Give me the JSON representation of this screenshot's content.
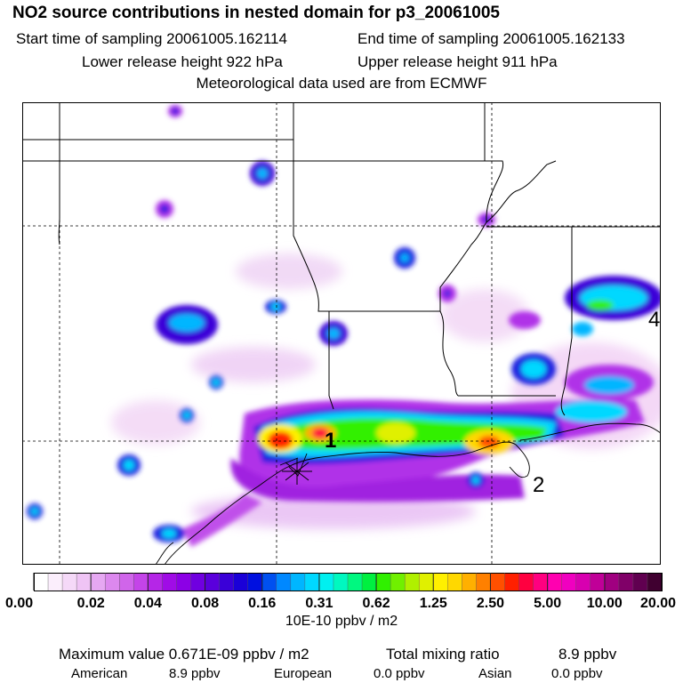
{
  "header": {
    "title": "NO2 source contributions in nested domain for p3_20061005",
    "start_label": "Start time of sampling 20061005.162114",
    "end_label": "End time of sampling 20061005.162133",
    "lower_label": "Lower release height  922 hPa",
    "upper_label": "Upper release height  911 hPa",
    "met_label": "Meteorological data used are from ECMWF"
  },
  "chart_data": {
    "type": "heatmap",
    "title": "NO2 source contributions in nested domain for p3_20061005",
    "units": "10E-10 ppbv / m2",
    "colorbar_ticks": [
      "0.00",
      "0.02",
      "0.04",
      "0.08",
      "0.16",
      "0.31",
      "0.62",
      "1.25",
      "2.50",
      "5.00",
      "10.00",
      "20.00"
    ],
    "colorbar_colors": [
      "#ffffff",
      "#fbeefc",
      "#f5d9f8",
      "#efc4f5",
      "#e6a8f2",
      "#dc88ee",
      "#d065ea",
      "#c444e8",
      "#b526e7",
      "#a00ce6",
      "#8c00e6",
      "#7000e0",
      "#5a00dc",
      "#3a00d8",
      "#1a00d8",
      "#0010e0",
      "#0050f0",
      "#0088ff",
      "#00b6ff",
      "#00d8ff",
      "#00f0f0",
      "#00f8c0",
      "#00f880",
      "#00f040",
      "#30f000",
      "#70f000",
      "#b0f000",
      "#e0f000",
      "#fff000",
      "#ffd800",
      "#ffb000",
      "#ff8000",
      "#ff5000",
      "#ff2000",
      "#ff0040",
      "#ff0080",
      "#ff00b0",
      "#f000c0",
      "#d800b0",
      "#c00098",
      "#a00080",
      "#800068",
      "#600050",
      "#400030"
    ],
    "markers": [
      {
        "label": "1",
        "lon": -94.2,
        "lat": 29.9
      },
      {
        "label": "2",
        "lon": -89.5,
        "lat": 28.8
      },
      {
        "label": "4",
        "lon": -84.9,
        "lat": 32.4
      }
    ],
    "hotspots": [
      {
        "lon": -96.2,
        "lat": 29.95,
        "value": 5.0
      },
      {
        "lon": -94.7,
        "lat": 30.05,
        "value": 5.0
      },
      {
        "lon": -93.8,
        "lat": 29.95,
        "value": 2.5
      },
      {
        "lon": -92.6,
        "lat": 30.05,
        "value": 1.25
      },
      {
        "lon": -90.6,
        "lat": 30.05,
        "value": 1.25
      },
      {
        "lon": -89.7,
        "lat": 30.0,
        "value": 2.5
      },
      {
        "lon": -86.3,
        "lat": 32.7,
        "value": 0.62
      }
    ]
  },
  "footer": {
    "max_label": "Maximum value  0.671E-09 ppbv / m2",
    "total_label": "Total mixing ratio",
    "total_value": "8.9 ppbv",
    "american_label": "American",
    "american_value": "8.9 ppbv",
    "european_label": "European",
    "european_value": "0.0 ppbv",
    "asian_label": "Asian",
    "asian_value": "0.0 ppbv"
  }
}
